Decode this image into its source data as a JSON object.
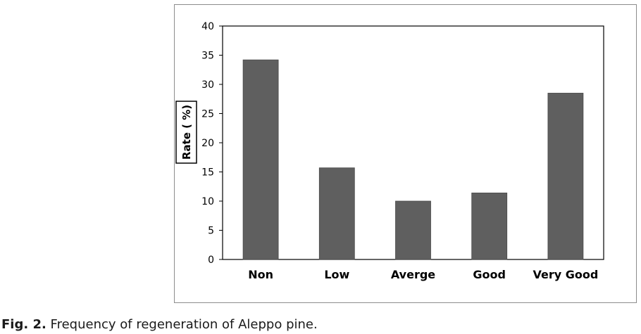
{
  "caption": {
    "label": "Fig. 2.",
    "text": " Frequency of regeneration of Aleppo pine."
  },
  "chart_data": {
    "type": "bar",
    "title": "",
    "xlabel": "",
    "ylabel": "Rate ( %)",
    "categories": [
      "Non",
      "Low",
      "Averge",
      "Good",
      "Very Good"
    ],
    "values": [
      34.2,
      15.7,
      10.0,
      11.4,
      28.5
    ],
    "ylim": [
      0,
      40
    ],
    "yticks": [
      0,
      5,
      10,
      15,
      20,
      25,
      30,
      35,
      40
    ],
    "grid": false,
    "legend": "none",
    "bar_color": "#5f5f5f"
  }
}
